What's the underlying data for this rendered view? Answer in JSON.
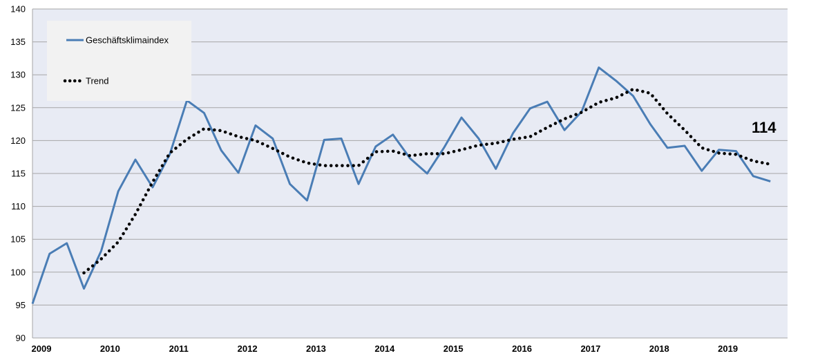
{
  "chart_data": {
    "type": "line",
    "title": "",
    "xlabel": "",
    "ylabel": "",
    "ylim": [
      90,
      140
    ],
    "yticks": [
      90,
      95,
      100,
      105,
      110,
      115,
      120,
      125,
      130,
      135,
      140
    ],
    "x_tick_labels": [
      "2009",
      "2010",
      "2011",
      "2012",
      "2013",
      "2014",
      "2015",
      "2016",
      "2017",
      "2018",
      "2019"
    ],
    "x_range": [
      2009,
      2020
    ],
    "grid": "horizontal",
    "legend_position": "top-left",
    "annotation": "114",
    "colors": {
      "plot_background": "#e8ebf4",
      "grid": "#a6a6a6",
      "series_line": "#4a7db5",
      "trend": "#000000",
      "legend_background": "#f2f2f2"
    },
    "series": [
      {
        "name": "Geschäftsklimaindex",
        "style": "solid",
        "x": [
          2009.0,
          2009.25,
          2009.5,
          2009.75,
          2010.0,
          2010.25,
          2010.5,
          2010.75,
          2011.0,
          2011.25,
          2011.5,
          2011.75,
          2012.0,
          2012.25,
          2012.5,
          2012.75,
          2013.0,
          2013.25,
          2013.5,
          2013.75,
          2014.0,
          2014.25,
          2014.5,
          2014.75,
          2015.0,
          2015.25,
          2015.5,
          2015.75,
          2016.0,
          2016.25,
          2016.5,
          2016.75,
          2017.0,
          2017.25,
          2017.5,
          2017.75,
          2018.0,
          2018.25,
          2018.5,
          2018.75,
          2019.0,
          2019.25,
          2019.5,
          2019.75
        ],
        "values": [
          95.2,
          102.8,
          104.4,
          97.5,
          103.2,
          112.3,
          117.1,
          112.9,
          117.9,
          126.1,
          124.2,
          118.5,
          115.1,
          122.3,
          120.3,
          113.4,
          110.9,
          120.1,
          120.3,
          113.4,
          119.1,
          120.9,
          117.3,
          115.0,
          119.0,
          123.5,
          120.3,
          115.7,
          121.1,
          124.9,
          125.9,
          121.6,
          124.4,
          131.1,
          129.1,
          126.8,
          122.5,
          118.9,
          119.2,
          115.4,
          118.6,
          118.4,
          114.6,
          113.8
        ]
      },
      {
        "name": "Trend",
        "style": "dotted",
        "x": [
          2009.75,
          2010.0,
          2010.25,
          2010.5,
          2010.75,
          2011.0,
          2011.25,
          2011.5,
          2011.75,
          2012.0,
          2012.25,
          2012.5,
          2012.75,
          2013.0,
          2013.25,
          2013.5,
          2013.75,
          2014.0,
          2014.25,
          2014.5,
          2014.75,
          2015.0,
          2015.25,
          2015.5,
          2015.75,
          2016.0,
          2016.25,
          2016.5,
          2016.75,
          2017.0,
          2017.25,
          2017.5,
          2017.75,
          2018.0,
          2018.25,
          2018.5,
          2018.75,
          2019.0,
          2019.25,
          2019.5,
          2019.75
        ],
        "values": [
          99.9,
          102.0,
          104.6,
          108.8,
          113.7,
          118.1,
          120.2,
          121.8,
          121.5,
          120.6,
          120.0,
          118.8,
          117.5,
          116.6,
          116.2,
          116.2,
          116.2,
          118.3,
          118.4,
          117.7,
          118.0,
          118.0,
          118.6,
          119.3,
          119.6,
          120.2,
          120.6,
          122.0,
          123.3,
          124.3,
          125.8,
          126.5,
          127.8,
          127.2,
          124.1,
          121.6,
          118.9,
          118.1,
          117.9,
          116.9,
          116.4
        ]
      }
    ]
  }
}
